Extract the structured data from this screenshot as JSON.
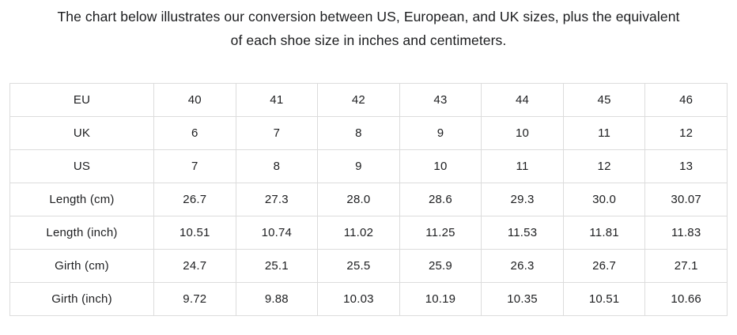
{
  "page": {
    "title_line1": "The chart below illustrates our conversion between US, European, and UK sizes, plus the equivalent",
    "title_line2": "of each shoe size in inches and centimeters."
  },
  "chart_data": {
    "type": "table",
    "title": "The chart below illustrates our conversion between US, European, and UK sizes, plus the equivalent of each shoe size in inches and centimeters.",
    "row_headers": [
      "EU",
      "UK",
      "US",
      "Length (cm)",
      "Length (inch)",
      "Girth (cm)",
      "Girth (inch)"
    ],
    "rows": [
      {
        "label": "EU",
        "values": [
          "40",
          "41",
          "42",
          "43",
          "44",
          "45",
          "46"
        ]
      },
      {
        "label": "UK",
        "values": [
          "6",
          "7",
          "8",
          "9",
          "10",
          "11",
          "12"
        ]
      },
      {
        "label": "US",
        "values": [
          "7",
          "8",
          "9",
          "10",
          "11",
          "12",
          "13"
        ]
      },
      {
        "label": "Length (cm)",
        "values": [
          "26.7",
          "27.3",
          "28.0",
          "28.6",
          "29.3",
          "30.0",
          "30.07"
        ]
      },
      {
        "label": "Length (inch)",
        "values": [
          "10.51",
          "10.74",
          "11.02",
          "11.25",
          "11.53",
          "11.81",
          "11.83"
        ]
      },
      {
        "label": "Girth (cm)",
        "values": [
          "24.7",
          "25.1",
          "25.5",
          "25.9",
          "26.3",
          "26.7",
          "27.1"
        ]
      },
      {
        "label": "Girth (inch)",
        "values": [
          "9.72",
          "9.88",
          "10.03",
          "10.19",
          "10.35",
          "10.51",
          "10.66"
        ]
      }
    ]
  },
  "colors": {
    "background": "#ffffff",
    "border": "#dcdcdc",
    "text": "#1d1e20"
  }
}
